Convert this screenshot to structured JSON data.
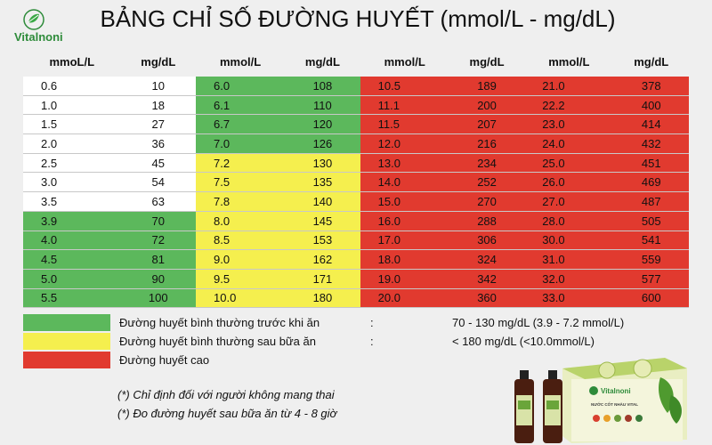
{
  "brand": {
    "name": "Vitalnoni",
    "tagline": "NƯỚC CỐT NHÀU VITAL"
  },
  "title": "BẢNG CHỈ SỐ ĐƯỜNG HUYẾT (mmol/L - mg/dL)",
  "table": {
    "headers": [
      "mmoL/L",
      "mg/dL",
      "mmol/L",
      "mg/dL",
      "mmol/L",
      "mg/dL",
      "mmol/L",
      "mg/dL"
    ],
    "rows": [
      [
        "0.6",
        "10",
        "6.0",
        "108",
        "10.5",
        "189",
        "21.0",
        "378"
      ],
      [
        "1.0",
        "18",
        "6.1",
        "110",
        "11.1",
        "200",
        "22.2",
        "400"
      ],
      [
        "1.5",
        "27",
        "6.7",
        "120",
        "11.5",
        "207",
        "23.0",
        "414"
      ],
      [
        "2.0",
        "36",
        "7.0",
        "126",
        "12.0",
        "216",
        "24.0",
        "432"
      ],
      [
        "2.5",
        "45",
        "7.2",
        "130",
        "13.0",
        "234",
        "25.0",
        "451"
      ],
      [
        "3.0",
        "54",
        "7.5",
        "135",
        "14.0",
        "252",
        "26.0",
        "469"
      ],
      [
        "3.5",
        "63",
        "7.8",
        "140",
        "15.0",
        "270",
        "27.0",
        "487"
      ],
      [
        "3.9",
        "70",
        "8.0",
        "145",
        "16.0",
        "288",
        "28.0",
        "505"
      ],
      [
        "4.0",
        "72",
        "8.5",
        "153",
        "17.0",
        "306",
        "30.0",
        "541"
      ],
      [
        "4.5",
        "81",
        "9.0",
        "162",
        "18.0",
        "324",
        "31.0",
        "559"
      ],
      [
        "5.0",
        "90",
        "9.5",
        "171",
        "19.0",
        "342",
        "32.0",
        "577"
      ],
      [
        "5.5",
        "100",
        "10.0",
        "180",
        "20.0",
        "360",
        "33.0",
        "600"
      ]
    ]
  },
  "colors": {
    "white": "#ffffff",
    "green": "#5cb85c",
    "yellow": "#f5ef4e",
    "red": "#e13a2f"
  },
  "legend": [
    {
      "color": "green",
      "label": "Đường huyết bình thường trước khi ăn",
      "colon": ":",
      "range": "70 - 130 mg/dL (3.9 - 7.2 mmol/L)"
    },
    {
      "color": "yellow",
      "label": "Đường huyết bình thường sau bữa ăn",
      "colon": ":",
      "range": "< 180 mg/dL (<10.0mmol/L)"
    },
    {
      "color": "red",
      "label": "Đường huyết cao",
      "colon": "",
      "range": ""
    }
  ],
  "notes": [
    "(*) Chỉ định đối với người không mang thai",
    "(*) Đo đường huyết sau bữa ăn từ 4 - 8 giờ"
  ]
}
